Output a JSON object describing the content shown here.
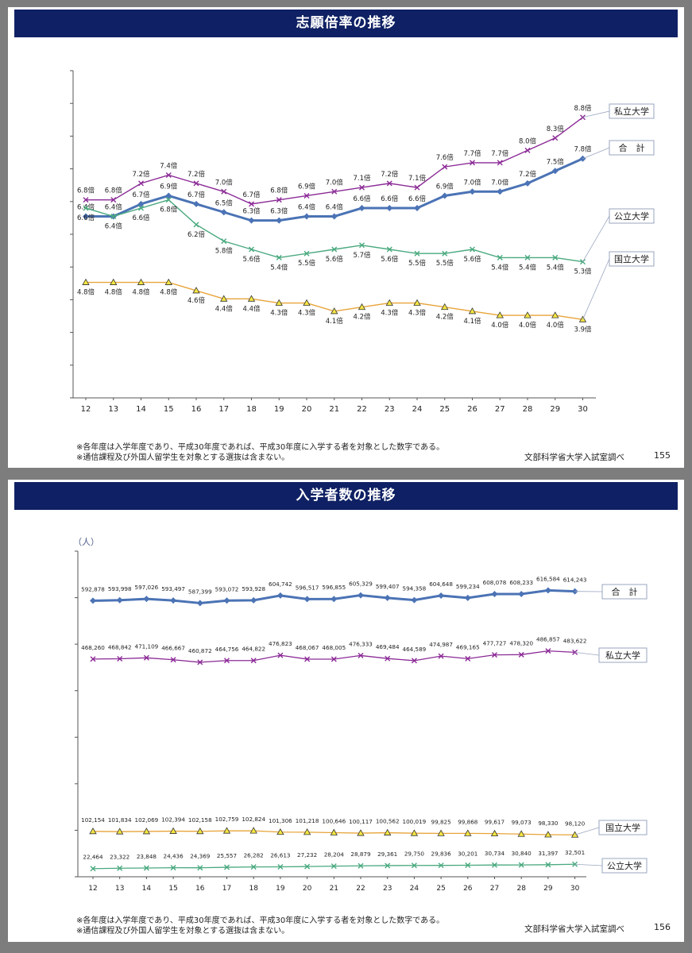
{
  "slide1": {
    "title": "志願倍率の推移",
    "notes": [
      "※各年度は入学年度であり、平成30年度であれば、平成30年度に入学する者を対象とした数字である。",
      "※通信課程及び外国人留学生を対象とする選抜は含まない。"
    ],
    "source": "文部科学省大学入試室調べ",
    "page": "155"
  },
  "slide2": {
    "title": "入学者数の推移",
    "unit": "（人）",
    "notes": [
      "※各年度は入学年度であり、平成30年度であれば、平成30年度に入学する者を対象とした数字である。",
      "※通信課程及び外国人留学生を対象とする選抜は含まない。"
    ],
    "source": "文部科学省大学入試室調べ",
    "page": "156"
  },
  "chart_data": [
    {
      "type": "line",
      "title": "志願倍率の推移",
      "x": [
        "12",
        "13",
        "14",
        "15",
        "16",
        "17",
        "18",
        "19",
        "20",
        "21",
        "22",
        "23",
        "24",
        "25",
        "26",
        "27",
        "28",
        "29",
        "30"
      ],
      "ylim": [
        0,
        10
      ],
      "grid": false,
      "value_suffix": "倍",
      "series": [
        {
          "name": "私立大学",
          "color": "#8b2a96",
          "marker": "x",
          "label_pos": "above",
          "values": [
            6.8,
            6.8,
            7.2,
            7.4,
            7.2,
            7.0,
            6.7,
            6.8,
            6.9,
            7.0,
            7.1,
            7.2,
            7.1,
            7.6,
            7.7,
            7.7,
            8.0,
            8.3,
            8.8
          ]
        },
        {
          "name": "合　計",
          "color": "#4b73b5",
          "marker": "diamond",
          "label_pos": "above",
          "values": [
            6.4,
            6.4,
            6.7,
            6.9,
            6.7,
            6.5,
            6.3,
            6.3,
            6.4,
            6.4,
            6.6,
            6.6,
            6.6,
            6.9,
            7.0,
            7.0,
            7.2,
            7.5,
            7.8
          ]
        },
        {
          "name": "公立大学",
          "color": "#4aa97f",
          "marker": "x",
          "label_pos": "below",
          "values": [
            6.6,
            6.4,
            6.6,
            6.8,
            6.2,
            5.8,
            5.6,
            5.4,
            5.5,
            5.6,
            5.7,
            5.6,
            5.5,
            5.5,
            5.6,
            5.4,
            5.4,
            5.4,
            5.3
          ]
        },
        {
          "name": "国立大学",
          "color": "#e8a43a",
          "marker": "triangle",
          "label_pos": "below",
          "values": [
            4.8,
            4.8,
            4.8,
            4.8,
            4.6,
            4.4,
            4.4,
            4.3,
            4.3,
            4.1,
            4.2,
            4.3,
            4.3,
            4.2,
            4.1,
            4.0,
            4.0,
            4.0,
            3.9
          ]
        }
      ]
    },
    {
      "type": "line",
      "title": "入学者数の推移",
      "x": [
        "12",
        "13",
        "14",
        "15",
        "16",
        "17",
        "18",
        "19",
        "20",
        "21",
        "22",
        "23",
        "24",
        "25",
        "26",
        "27",
        "28",
        "29",
        "30"
      ],
      "ylim": [
        0,
        700000
      ],
      "grid": false,
      "series": [
        {
          "name": "合　計",
          "color": "#4b73b5",
          "marker": "diamond",
          "values": [
            592878,
            593998,
            597026,
            593497,
            587399,
            593072,
            593928,
            604742,
            596517,
            596855,
            605329,
            599407,
            594358,
            604648,
            599234,
            608078,
            608233,
            616584,
            614243
          ]
        },
        {
          "name": "私立大学",
          "color": "#8b2a96",
          "marker": "x",
          "values": [
            468260,
            468842,
            471109,
            466667,
            460872,
            464756,
            464822,
            476823,
            468067,
            468005,
            476333,
            469484,
            464589,
            474987,
            469165,
            477727,
            478320,
            486857,
            483622
          ]
        },
        {
          "name": "国立大学",
          "color": "#e8a43a",
          "marker": "triangle",
          "values": [
            102154,
            101834,
            102069,
            102394,
            102158,
            102759,
            102824,
            101306,
            101218,
            100646,
            100117,
            100562,
            100019,
            99825,
            99868,
            99617,
            99073,
            98330,
            98120
          ]
        },
        {
          "name": "公立大学",
          "color": "#4aa97f",
          "marker": "x",
          "values": [
            22464,
            23322,
            23848,
            24436,
            24369,
            25557,
            26282,
            26613,
            27232,
            28204,
            28879,
            29361,
            29750,
            29836,
            30201,
            30734,
            30840,
            31397,
            32501
          ]
        }
      ]
    }
  ]
}
